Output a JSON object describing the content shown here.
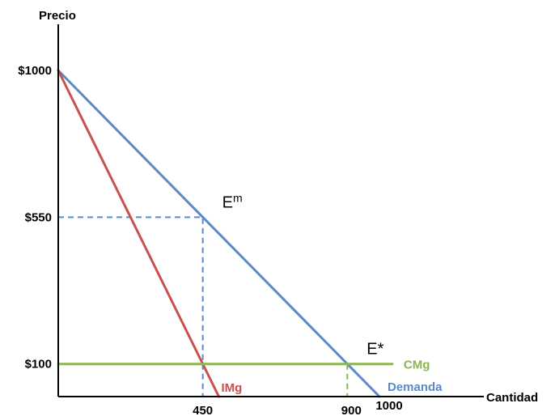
{
  "chart_data": {
    "type": "line",
    "xlabel": "Cantidad",
    "ylabel": "Precio",
    "xlim": [
      0,
      1100
    ],
    "ylim": [
      0,
      1000
    ],
    "grid": false,
    "x_ticks": [
      {
        "value": 450,
        "label": "450"
      },
      {
        "value": 900,
        "label": "900"
      },
      {
        "value": 1000,
        "label": "1000"
      }
    ],
    "y_ticks": [
      {
        "value": 1000,
        "label": "$1000"
      },
      {
        "value": 550,
        "label": "$550"
      },
      {
        "value": 100,
        "label": "$100"
      }
    ],
    "series": [
      {
        "name": "Demanda",
        "color": "#5b8ac6",
        "points": [
          [
            0,
            1000
          ],
          [
            1000,
            0
          ]
        ]
      },
      {
        "name": "IMg",
        "color": "#c9504f",
        "points": [
          [
            0,
            1000
          ],
          [
            500,
            0
          ]
        ]
      },
      {
        "name": "CMg",
        "color": "#8db650",
        "points": [
          [
            0,
            100
          ],
          [
            1040,
            100
          ]
        ]
      }
    ],
    "guides": [
      {
        "color": "#5b8ac6",
        "from": [
          0,
          550
        ],
        "corner": [
          450,
          550
        ],
        "to": [
          450,
          0
        ]
      },
      {
        "color": "#8db650",
        "from": [
          900,
          100
        ],
        "to": [
          900,
          0
        ]
      }
    ],
    "annotations": [
      {
        "id": "monopoly",
        "label": "E",
        "sup": "m",
        "at": [
          450,
          550
        ]
      },
      {
        "id": "competitive",
        "label": "E*",
        "at": [
          900,
          100
        ]
      }
    ]
  }
}
